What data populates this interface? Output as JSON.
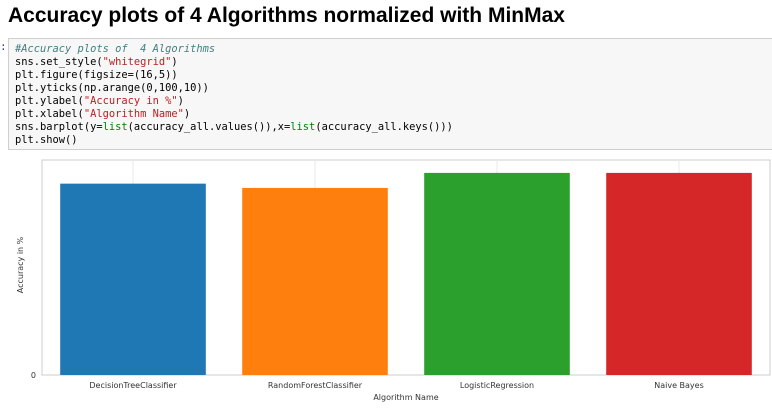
{
  "heading": "Accuracy plots of 4 Algorithms normalized with MinMax",
  "prompt": ":",
  "code": {
    "lines": [
      [
        {
          "t": "#Accuracy plots of  4 Algorithms",
          "c": "comment"
        }
      ],
      [
        {
          "t": "sns.set_style("
        },
        {
          "t": "\"whitegrid\"",
          "c": "string"
        },
        {
          "t": ")"
        }
      ],
      [
        {
          "t": "plt.figure(figsize=(16,5))"
        }
      ],
      [
        {
          "t": "plt.yticks(np.arange(0,100,10))"
        }
      ],
      [
        {
          "t": "plt.ylabel("
        },
        {
          "t": "\"Accuracy in %\"",
          "c": "string"
        },
        {
          "t": ")"
        }
      ],
      [
        {
          "t": "plt.xlabel("
        },
        {
          "t": "\"Algorithm Name\"",
          "c": "string"
        },
        {
          "t": ")"
        }
      ],
      [
        {
          "t": "sns.barplot(y="
        },
        {
          "t": "list",
          "c": "keyword"
        },
        {
          "t": "(accuracy_all.values()),x="
        },
        {
          "t": "list",
          "c": "keyword"
        },
        {
          "t": "(accuracy_all.keys()))"
        }
      ],
      [
        {
          "t": "plt.show()"
        }
      ]
    ]
  },
  "chart_data": {
    "type": "bar",
    "categories": [
      "DecisionTreeClassifier",
      "RandomForestClassifier",
      "LogisticRegression",
      "Naive Bayes"
    ],
    "values": [
      89,
      87,
      94,
      94
    ],
    "colors": [
      "#1f77b4",
      "#ff7f0e",
      "#2ca02c",
      "#d62728"
    ],
    "xlabel": "Algorithm Name",
    "ylabel": "Accuracy in %",
    "ylim": [
      0,
      100
    ],
    "yticks": [
      "0"
    ],
    "grid": true
  }
}
